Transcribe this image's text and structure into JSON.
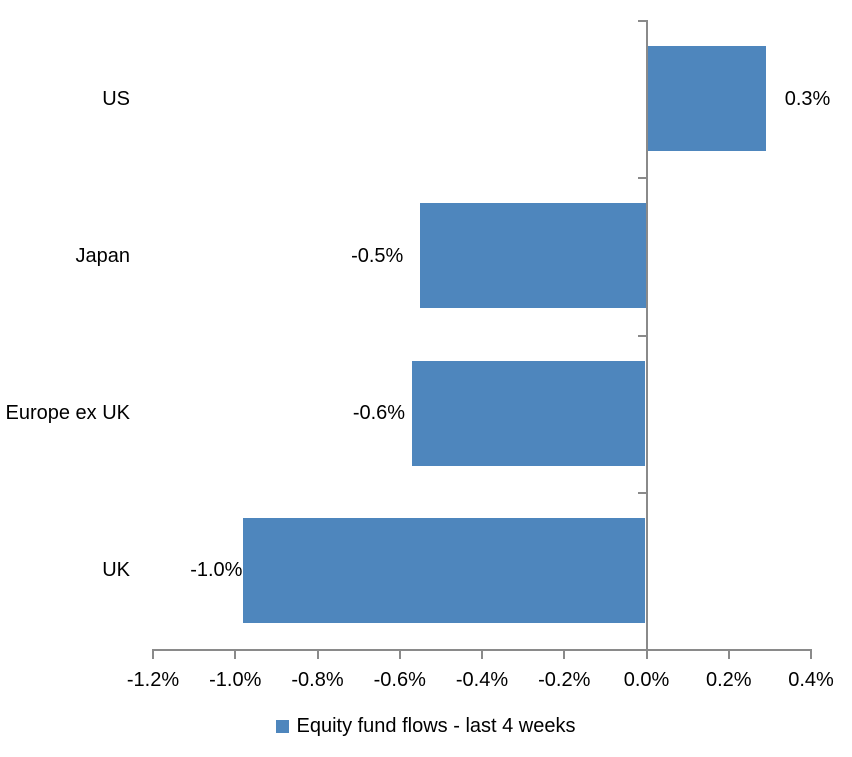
{
  "chart_data": {
    "type": "bar",
    "orientation": "horizontal",
    "title": "",
    "categories": [
      "US",
      "Japan",
      "Europe ex UK",
      "UK"
    ],
    "values": [
      0.29,
      -0.55,
      -0.57,
      -0.98
    ],
    "data_labels": [
      "0.3%",
      "-0.5%",
      "-0.6%",
      "-1.0%"
    ],
    "series": [
      {
        "name": "Equity fund flows - last 4 weeks"
      }
    ],
    "xlim": [
      -1.2,
      0.4
    ],
    "x_ticks": [
      {
        "value": -1.2,
        "label": "-1.2%"
      },
      {
        "value": -1.0,
        "label": "-1.0%"
      },
      {
        "value": -0.8,
        "label": "-0.8%"
      },
      {
        "value": -0.6,
        "label": "-0.6%"
      },
      {
        "value": -0.4,
        "label": "-0.4%"
      },
      {
        "value": -0.2,
        "label": "-0.2%"
      },
      {
        "value": 0.0,
        "label": "0.0%"
      },
      {
        "value": 0.2,
        "label": "0.2%"
      },
      {
        "value": 0.4,
        "label": "0.4%"
      }
    ],
    "grid": false,
    "legend_position": "bottom",
    "colors": {
      "bar": "#4E86BD",
      "axis": "#8A8A8A",
      "text": "#000000"
    }
  },
  "legend": {
    "label": "Equity fund flows - last 4 weeks"
  }
}
